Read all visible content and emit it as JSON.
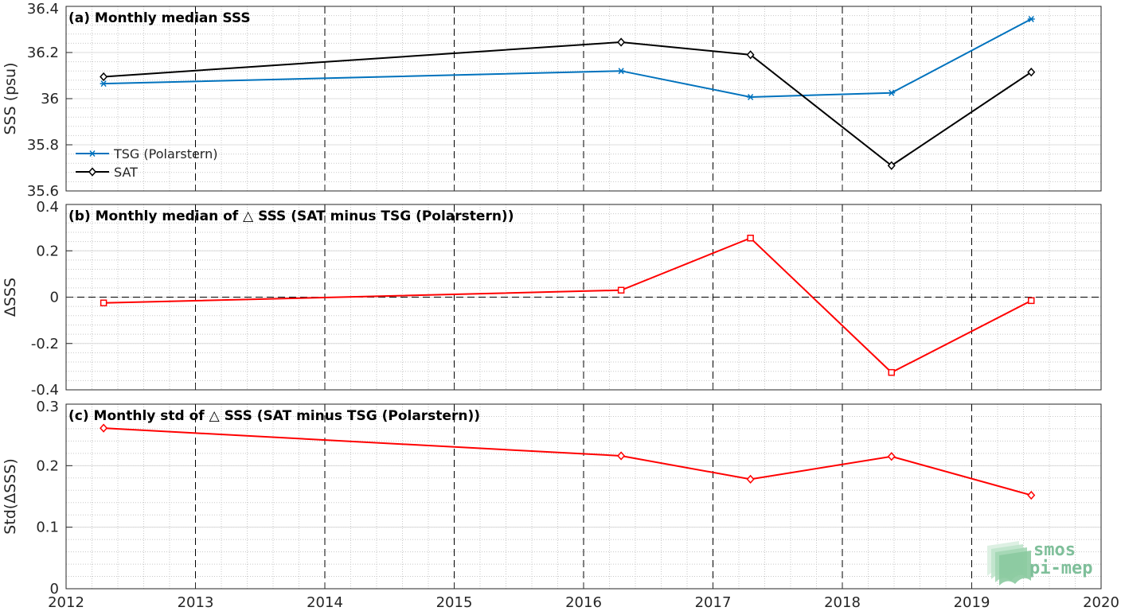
{
  "chart_data": [
    {
      "type": "line",
      "title": "(a) Monthly median SSS",
      "ylabel": "SSS (psu)",
      "xlabel": "",
      "xlim": [
        2012,
        2020
      ],
      "ylim": [
        35.6,
        36.4
      ],
      "yticks": [
        35.6,
        35.8,
        36,
        36.2,
        36.4
      ],
      "ytick_labels": [
        "35.6",
        "35.8",
        "36",
        "36.2",
        "36.4"
      ],
      "grid": "on",
      "legend": "bottom-left",
      "series": [
        {
          "name": "TSG (Polarstern)",
          "color": "#0072bd",
          "marker": "asterisk",
          "x": [
            2012.29,
            2016.29,
            2017.29,
            2018.38,
            2019.46
          ],
          "y": [
            36.065,
            36.12,
            36.007,
            36.025,
            36.345
          ]
        },
        {
          "name": "SAT",
          "color": "#000000",
          "marker": "diamond",
          "x": [
            2012.29,
            2016.29,
            2017.29,
            2018.38,
            2019.46
          ],
          "y": [
            36.095,
            36.245,
            36.19,
            35.71,
            36.115
          ]
        }
      ]
    },
    {
      "type": "line",
      "title": "(b) Monthly median of △ SSS (SAT minus TSG (Polarstern))",
      "ylabel": "ΔSSS",
      "xlabel": "",
      "xlim": [
        2012,
        2020
      ],
      "ylim": [
        -0.4,
        0.4
      ],
      "yticks": [
        -0.4,
        -0.2,
        0,
        0.2,
        0.4
      ],
      "ytick_labels": [
        "-0.4",
        "-0.2",
        "0",
        "0.2",
        "0.4"
      ],
      "grid": "on",
      "zero_line": true,
      "series": [
        {
          "color": "#ff0000",
          "marker": "square",
          "x": [
            2012.29,
            2016.29,
            2017.29,
            2018.38,
            2019.46
          ],
          "y": [
            -0.025,
            0.03,
            0.255,
            -0.325,
            -0.015
          ]
        }
      ]
    },
    {
      "type": "line",
      "title": "(c) Monthly std of △ SSS (SAT minus TSG (Polarstern))",
      "ylabel": "Std(ΔSSS)",
      "xlabel": "",
      "xlim": [
        2012,
        2020
      ],
      "ylim": [
        0,
        0.3
      ],
      "yticks": [
        0,
        0.1,
        0.2,
        0.3
      ],
      "ytick_labels": [
        "0",
        "0.1",
        "0.2",
        "0.3"
      ],
      "xticks": [
        2012,
        2013,
        2014,
        2015,
        2016,
        2017,
        2018,
        2019,
        2020
      ],
      "xtick_labels": [
        "2012",
        "2013",
        "2014",
        "2015",
        "2016",
        "2017",
        "2018",
        "2019",
        "2020"
      ],
      "grid": "on",
      "series": [
        {
          "color": "#ff0000",
          "marker": "diamond",
          "x": [
            2012.29,
            2016.29,
            2017.29,
            2018.38,
            2019.46
          ],
          "y": [
            0.261,
            0.216,
            0.178,
            0.215,
            0.152
          ]
        }
      ]
    }
  ],
  "logo": {
    "line1": "smos",
    "line2": "pi-mep",
    "color": "#7fbf9a"
  }
}
